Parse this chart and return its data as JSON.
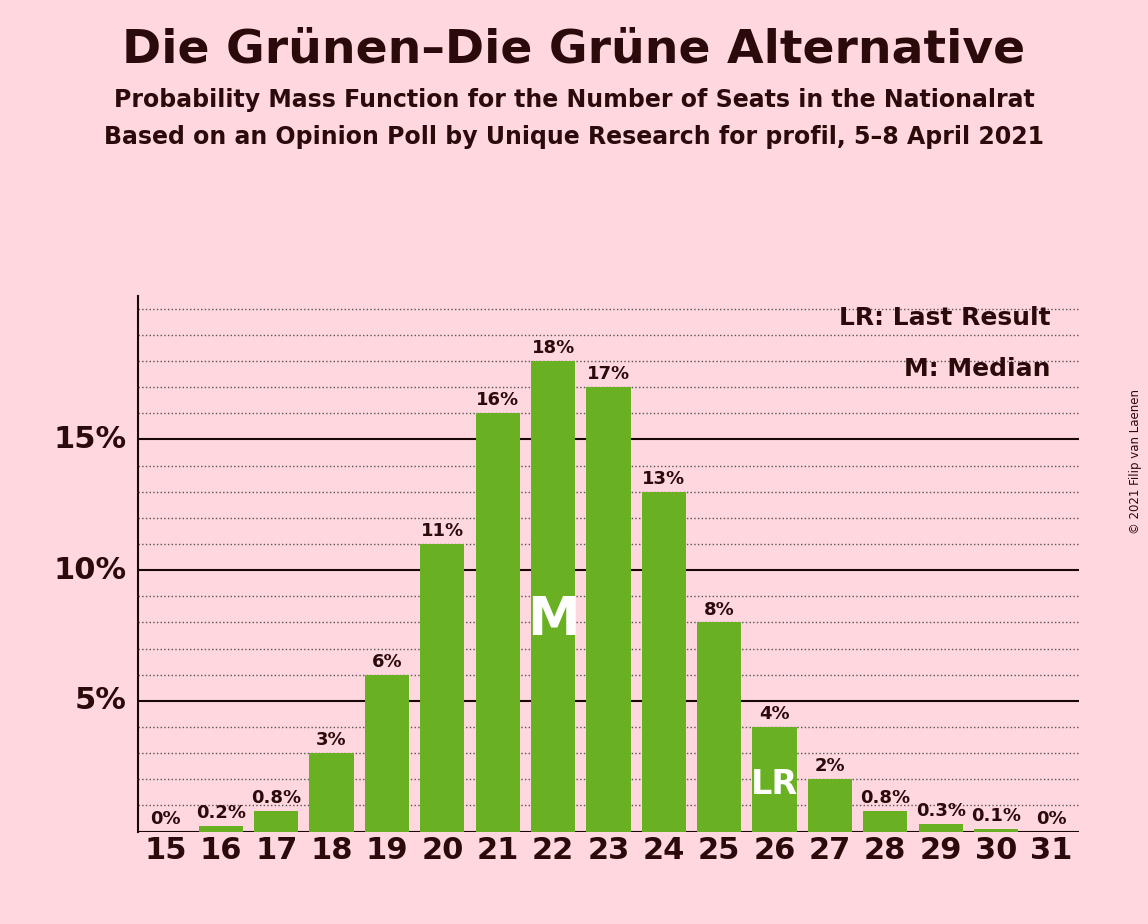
{
  "title": "Die Grünen–Die Grüne Alternative",
  "subtitle1": "Probability Mass Function for the Number of Seats in the Nationalrat",
  "subtitle2": "Based on an Opinion Poll by Unique Research for profil, 5–8 April 2021",
  "copyright": "© 2021 Filip van Laenen",
  "seats": [
    15,
    16,
    17,
    18,
    19,
    20,
    21,
    22,
    23,
    24,
    25,
    26,
    27,
    28,
    29,
    30,
    31
  ],
  "probabilities": [
    0.0,
    0.2,
    0.8,
    3.0,
    6.0,
    11.0,
    16.0,
    18.0,
    17.0,
    13.0,
    8.0,
    4.0,
    2.0,
    0.8,
    0.3,
    0.1,
    0.0
  ],
  "labels": [
    "0%",
    "0.2%",
    "0.8%",
    "3%",
    "6%",
    "11%",
    "16%",
    "18%",
    "17%",
    "13%",
    "8%",
    "4%",
    "2%",
    "0.8%",
    "0.3%",
    "0.1%",
    "0%"
  ],
  "bar_color": "#6ab023",
  "background_color": "#ffd7de",
  "text_color": "#2a0a0a",
  "median_seat": 22,
  "lr_seat": 26,
  "legend_lr": "LR: Last Result",
  "legend_m": "M: Median",
  "title_fontsize": 34,
  "subtitle_fontsize": 17,
  "bar_label_fontsize": 13,
  "axis_tick_fontsize": 22,
  "legend_fontsize": 18,
  "m_fontsize": 38,
  "lr_fontsize": 24,
  "ylim_max": 20.5
}
